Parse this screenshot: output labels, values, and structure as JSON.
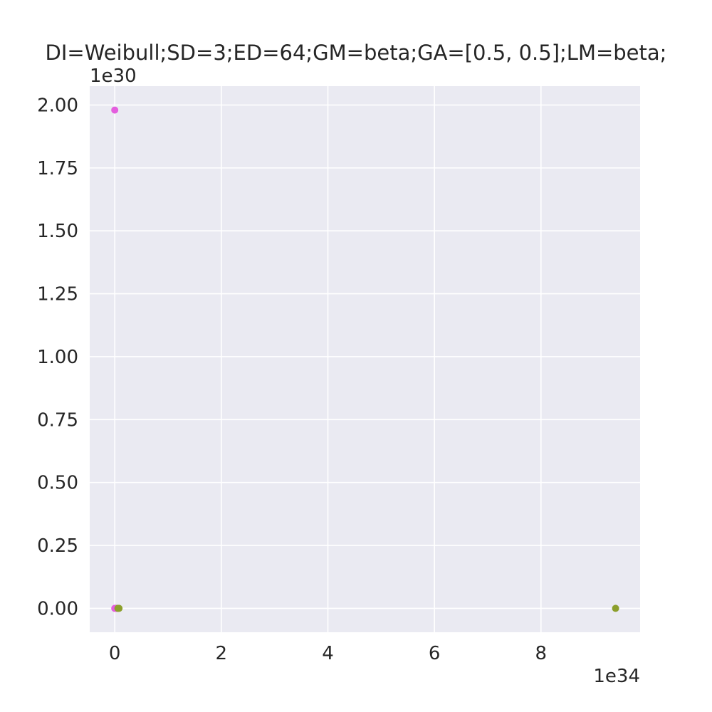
{
  "chart_data": {
    "type": "scatter",
    "title": "DI=Weibull;SD=3;ED=64;GM=beta;GA=[0.5, 0.5];LM=beta;",
    "xlabel": "",
    "ylabel": "",
    "x_offset_text": "1e34",
    "y_offset_text": "1e30",
    "xlim": [
      -0.47,
      9.86
    ],
    "ylim": [
      -0.095,
      2.075
    ],
    "x_scale_factor": 1e+34,
    "y_scale_factor": 1e+30,
    "x_ticks": [
      0,
      2,
      4,
      6,
      8
    ],
    "x_tick_labels": [
      "0",
      "2",
      "4",
      "6",
      "8"
    ],
    "y_ticks": [
      0,
      0.25,
      0.5,
      0.75,
      1.0,
      1.25,
      1.5,
      1.75,
      2.0
    ],
    "y_tick_labels": [
      "0.00",
      "0.25",
      "0.50",
      "0.75",
      "1.00",
      "1.25",
      "1.50",
      "1.75",
      "2.00"
    ],
    "grid": true,
    "background_color": "#eaeaf2",
    "grid_color": "#ffffff",
    "series": [
      {
        "color": "#e45ede",
        "points": [
          {
            "x": 0.0,
            "y": 1.98
          },
          {
            "x": 0.0,
            "y": 0.0
          },
          {
            "x": 0.02,
            "y": 0.0
          },
          {
            "x": 0.04,
            "y": 0.0
          }
        ]
      },
      {
        "color": "#8c9f2c",
        "points": [
          {
            "x": 0.06,
            "y": 0.0
          },
          {
            "x": 0.08,
            "y": 0.0
          },
          {
            "x": 9.4,
            "y": 0.0
          }
        ]
      }
    ]
  }
}
